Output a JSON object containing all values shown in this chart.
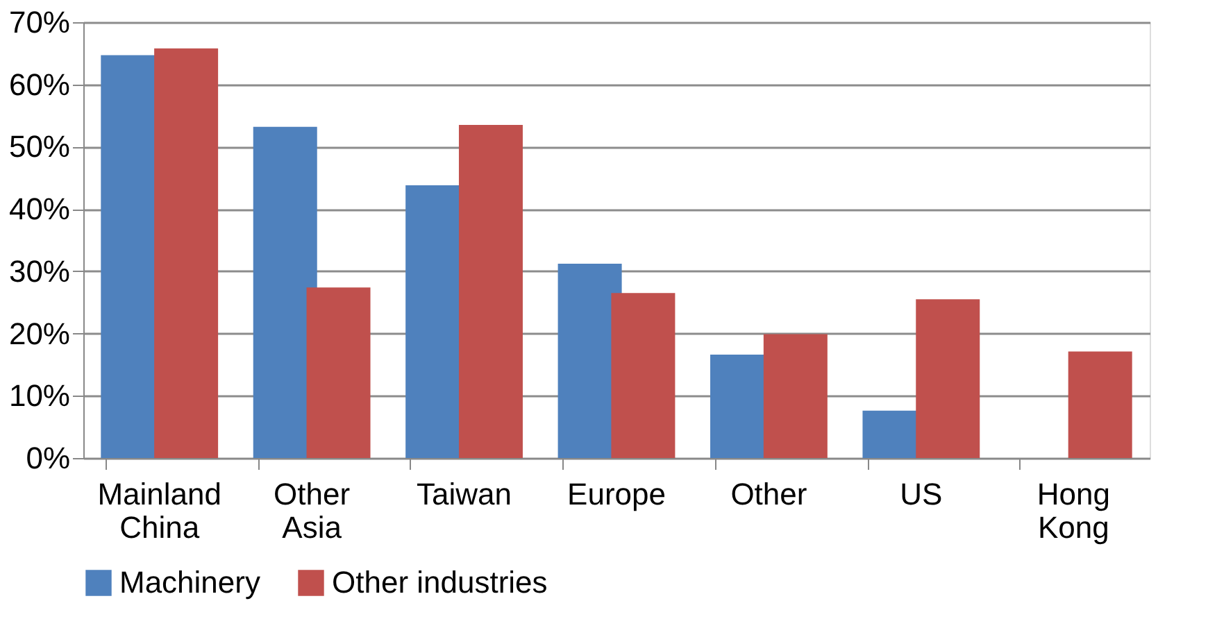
{
  "chart_data": {
    "type": "bar",
    "categories": [
      "Mainland China",
      "Other Asia",
      "Taiwan",
      "Europe",
      "Other",
      "US",
      "Hong Kong"
    ],
    "series": [
      {
        "name": "Machinery",
        "color": "#4f81bd",
        "values": [
          64.7,
          53.2,
          43.8,
          31.2,
          16.6,
          7.6,
          null
        ]
      },
      {
        "name": "Other industries",
        "color": "#c0504d",
        "values": [
          65.8,
          27.4,
          53.5,
          26.5,
          19.9,
          25.5,
          17.1
        ]
      }
    ],
    "ylim": [
      0,
      70
    ],
    "yticks": [
      {
        "value": 0,
        "label": "0%"
      },
      {
        "value": 10,
        "label": "10%"
      },
      {
        "value": 20,
        "label": "20%"
      },
      {
        "value": 30,
        "label": "30%"
      },
      {
        "value": 40,
        "label": "40%"
      },
      {
        "value": 50,
        "label": "50%"
      },
      {
        "value": 60,
        "label": "60%"
      },
      {
        "value": 70,
        "label": "70%"
      }
    ],
    "grid": "y",
    "legend": "bottom"
  }
}
